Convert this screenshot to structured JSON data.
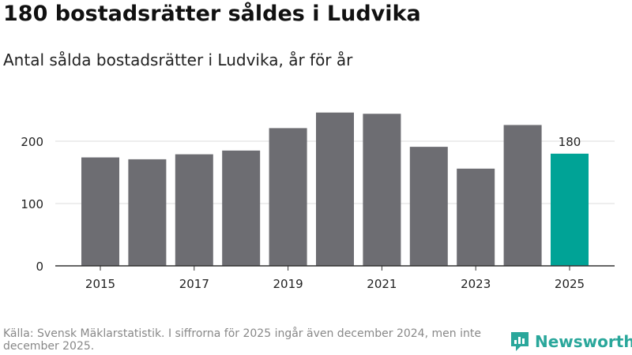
{
  "title": "180 bostadsrätter såldes i Ludvika",
  "subtitle": "Antal sålda bostadsrätter i Ludvika, år för år",
  "source": "Källa: Svensk Mäklarstatistik. I siffrorna för 2025 ingår även december 2024, men inte december 2025.",
  "brand": {
    "name": "Newsworthy",
    "color": "#2aa79b"
  },
  "colors": {
    "bar": "#6d6d72",
    "highlight": "#00a396",
    "grid": "#dddddd",
    "axis": "#333333"
  },
  "chart_data": {
    "type": "bar",
    "categories": [
      2015,
      2016,
      2017,
      2018,
      2019,
      2020,
      2021,
      2022,
      2023,
      2024,
      2025
    ],
    "values": [
      174,
      171,
      179,
      185,
      221,
      246,
      244,
      191,
      156,
      226,
      180
    ],
    "highlight_index": 10,
    "data_labels": [
      {
        "index": 10,
        "text": "180"
      }
    ],
    "x_tick_labels": [
      "2015",
      "2017",
      "2019",
      "2021",
      "2023",
      "2025"
    ],
    "y_ticks": [
      0,
      100,
      200
    ],
    "ylim": [
      0,
      260
    ],
    "grid": true,
    "xlabel": "",
    "ylabel": ""
  }
}
